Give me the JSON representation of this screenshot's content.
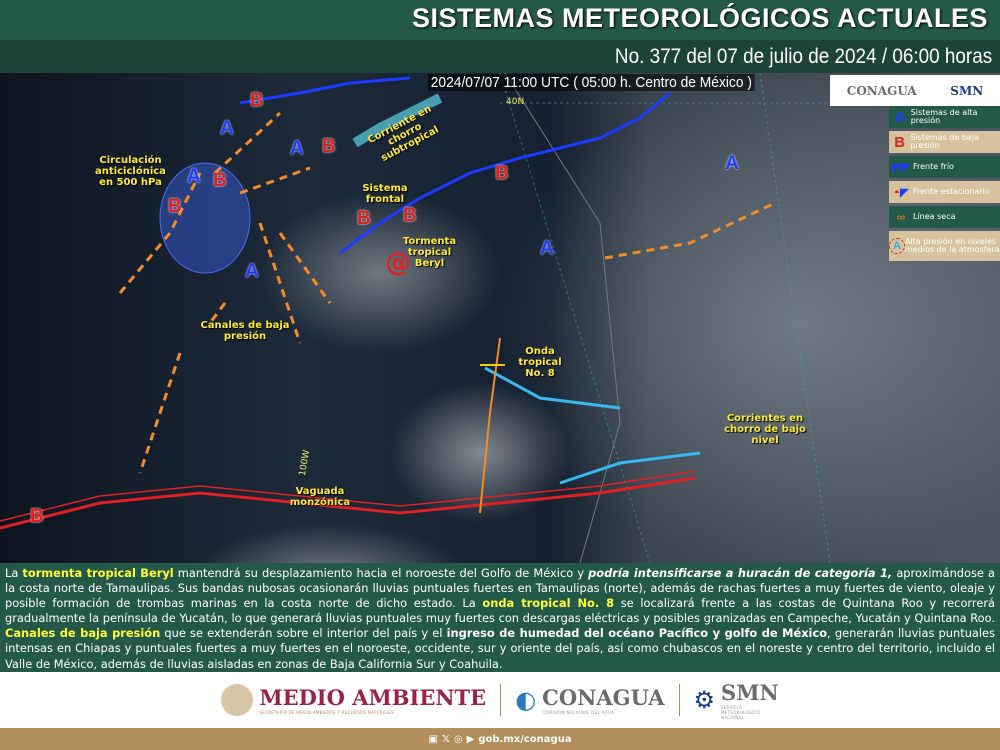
{
  "header": {
    "title": "SISTEMAS METEOROLÓGICOS ACTUALES",
    "subtitle": "No. 377 del 07 de julio de 2024 / 06:00 horas"
  },
  "map": {
    "timestamp": "2024/07/07 11:00 UTC ( 05:00 h. Centro de México )",
    "gridlabels": {
      "lat": "40N",
      "lon": "100W"
    },
    "labels": {
      "anticyclone": "Circulación anticiclónica en 500 hPa",
      "jet": "Corriente en chorro subtropical",
      "front": "Sistema frontal",
      "storm": "Tormenta tropical Beryl",
      "troughs": "Canales de baja presión",
      "wave": "Onda tropical No. 8",
      "lowjet": "Corrientes en chorro de bajo nivel",
      "monsoon": "Vaguada monzónica"
    },
    "high_symbol": "A",
    "low_symbol": "B",
    "top_logos": {
      "conagua": "CONAGUA",
      "smn": "SMN"
    }
  },
  "legend": [
    {
      "icon": "A",
      "label": "Sistemas de alta presión",
      "color": "#1c3cff"
    },
    {
      "icon": "B",
      "label": "Sistemas de baja presión",
      "color": "#e02020"
    },
    {
      "icon": "cold-front-icon",
      "label": "Frente frío"
    },
    {
      "icon": "stationary-front-icon",
      "label": "Frente estacionario"
    },
    {
      "icon": "dry-line-icon",
      "label": "Línea seca"
    },
    {
      "icon": "A",
      "label": "Alta presión en niveles medios de la atmosfera",
      "color": "#3fa7e0"
    }
  ],
  "bulletin": {
    "p1": "La ",
    "h1": "tormenta tropical Beryl",
    "p2": " mantendrá su desplazamiento hacia el noroeste del Golfo de México y ",
    "h2": "podría intensificarse a huracán de categoría 1,",
    "p3": " aproximándose a la costa norte de Tamaulipas. Sus bandas nubosas ocasionarán lluvias puntuales fuertes en Tamaulipas (norte), además de rachas fuertes a muy fuertes de viento, oleaje y posible formación de trombas marinas en la costa norte de dicho estado. La ",
    "h3": "onda tropical No. 8",
    "p4": " se localizará frente a las costas de Quintana Roo y recorrerá gradualmente la península de Yucatán, lo que generará lluvias puntuales muy fuertes con descargas eléctricas y posibles granizadas en Campeche, Yucatán y Quintana Roo. ",
    "h4": "Canales de baja presión",
    "p5": " que se extenderán sobre el interior del país y el ",
    "h5": "ingreso de humedad del océano Pacífico y golfo de México",
    "p6": ", generarán lluvias puntuales intensas en Chiapas y puntuales fuertes a muy fuertes en el noroeste, occidente, sur y oriente del país, así como chubascos en el noreste y centro del territorio, incluido el Valle de México, además de lluvias aisladas en zonas de Baja California Sur y Coahuila."
  },
  "footer": {
    "medio": "MEDIO AMBIENTE",
    "medio_sub": "SECRETARÍA DE MEDIO AMBIENTE Y RECURSOS NATURALES",
    "conagua": "CONAGUA",
    "conagua_sub": "COMISIÓN NACIONAL DEL AGUA",
    "smn": "SMN",
    "smn_sub": "SERVICIO METEOROLÓGICO NACIONAL",
    "url": "gob.mx/conagua"
  },
  "colors": {
    "green": "#245848",
    "dark_green": "#1c4338",
    "gold": "#b38e5d",
    "highlight": "#ffff3a"
  }
}
